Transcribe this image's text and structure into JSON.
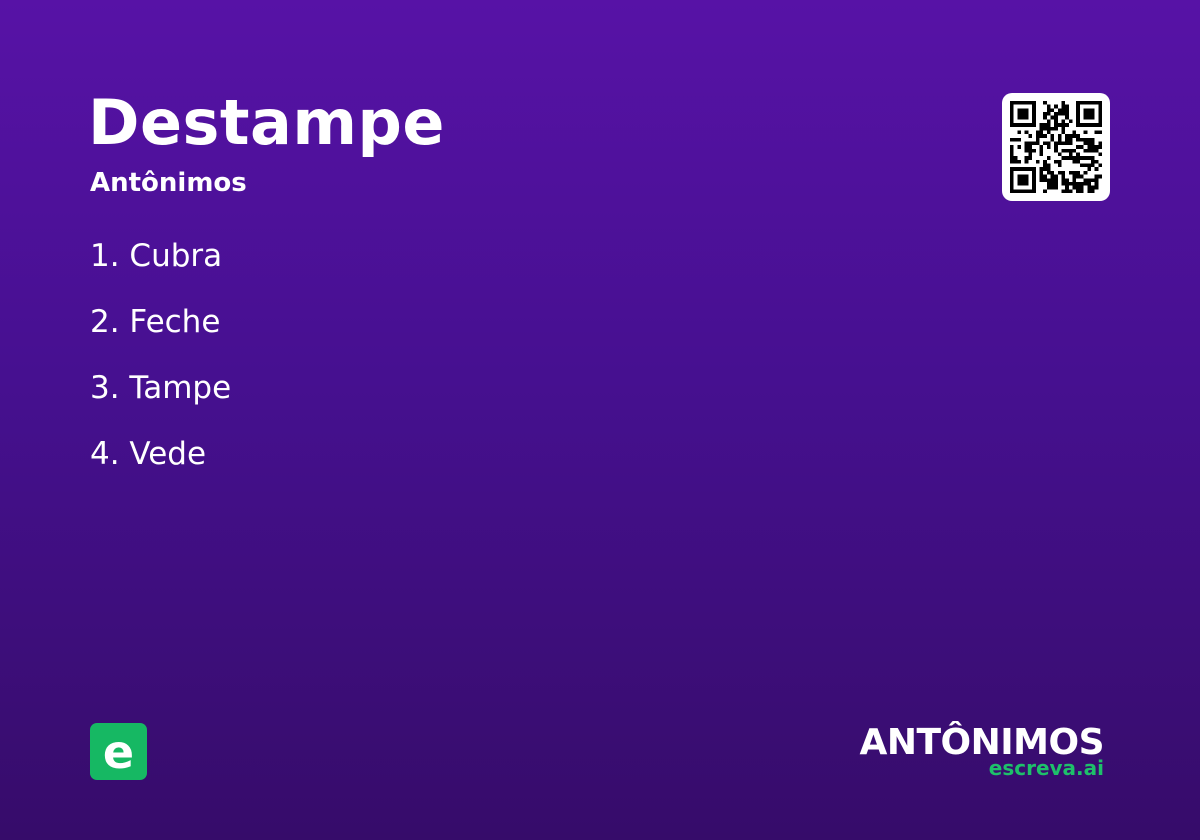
{
  "card": {
    "title": "Destampe",
    "subtitle": "Antônimos",
    "items": [
      "1. Cubra",
      "2. Feche",
      "3. Tampe",
      "4. Vede"
    ],
    "logo_letter": "e",
    "brand_main": "ANTÔNIMOS",
    "brand_sub": "escreva.ai"
  },
  "colors": {
    "background_top": "#5712a6",
    "background_bottom": "#360c6a",
    "accent_green": "#16b863"
  },
  "icons": {
    "qr": "qr-code-icon",
    "logo": "escreva-logo-icon"
  }
}
